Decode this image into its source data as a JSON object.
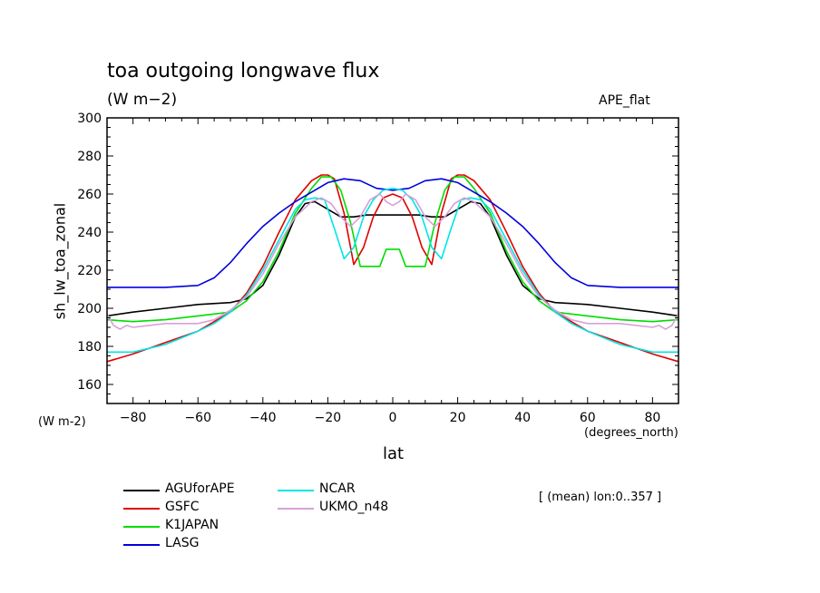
{
  "chart_data": {
    "type": "line",
    "title": "toa outgoing longwave flux",
    "units": "(W m−2)",
    "dataset_label": "APE_flat",
    "ylabel": "sh_lw_toa_zonal",
    "y_units": "(W m-2)",
    "xlabel": "lat",
    "x_units": "(degrees_north)",
    "annotation": "[ (mean) lon:0..357 ]",
    "xlim": [
      -88,
      88
    ],
    "ylim": [
      150,
      300
    ],
    "x_ticks": [
      -80,
      -60,
      -40,
      -20,
      0,
      20,
      40,
      60,
      80
    ],
    "y_ticks": [
      160,
      180,
      200,
      220,
      240,
      260,
      280,
      300
    ],
    "x_ticks_labels": [
      "−80",
      "−60",
      "−40",
      "−20",
      "0",
      "20",
      "40",
      "60",
      "80"
    ],
    "y_tick_labels": [
      "160",
      "180",
      "200",
      "220",
      "240",
      "260",
      "280",
      "300"
    ],
    "legend": "bottom-left",
    "grid": false,
    "series": [
      {
        "name": "AGUforAPE",
        "color": "#000000",
        "x": [
          -88,
          -80,
          -70,
          -60,
          -50,
          -45,
          -40,
          -35,
          -30,
          -27,
          -24,
          -20,
          -16,
          -12,
          -8,
          -4,
          0,
          4,
          8,
          12,
          16,
          20,
          24,
          27,
          30,
          35,
          40,
          45,
          50,
          60,
          70,
          80,
          88
        ],
        "y": [
          196,
          198,
          200,
          202,
          203,
          205,
          212,
          228,
          248,
          255,
          256,
          252,
          248,
          248,
          249,
          249,
          249,
          249,
          249,
          248,
          248,
          252,
          256,
          255,
          248,
          228,
          212,
          205,
          203,
          202,
          200,
          198,
          196
        ]
      },
      {
        "name": "GSFC",
        "color": "#e00000",
        "x": [
          -88,
          -80,
          -70,
          -60,
          -50,
          -45,
          -40,
          -35,
          -30,
          -25,
          -22,
          -20,
          -18,
          -15,
          -12,
          -9,
          -6,
          -3,
          0,
          3,
          6,
          9,
          12,
          15,
          18,
          20,
          22,
          25,
          30,
          35,
          40,
          45,
          50,
          60,
          70,
          80,
          88
        ],
        "y": [
          172,
          176,
          182,
          188,
          198,
          208,
          222,
          240,
          257,
          267,
          270,
          270,
          268,
          250,
          223,
          232,
          248,
          258,
          260,
          258,
          248,
          232,
          223,
          250,
          268,
          270,
          270,
          267,
          257,
          240,
          222,
          208,
          198,
          188,
          182,
          176,
          172
        ]
      },
      {
        "name": "K1JAPAN",
        "color": "#00dd00",
        "x": [
          -88,
          -80,
          -70,
          -60,
          -50,
          -45,
          -40,
          -35,
          -30,
          -25,
          -22,
          -19,
          -16,
          -13,
          -10,
          -7,
          -4,
          -2,
          0,
          2,
          4,
          7,
          10,
          13,
          16,
          19,
          22,
          25,
          30,
          35,
          40,
          45,
          50,
          60,
          70,
          80,
          88
        ],
        "y": [
          194,
          193,
          194,
          196,
          198,
          204,
          214,
          230,
          250,
          263,
          269,
          269,
          262,
          245,
          222,
          222,
          222,
          231,
          231,
          231,
          222,
          222,
          222,
          245,
          262,
          269,
          269,
          263,
          250,
          230,
          214,
          204,
          198,
          196,
          194,
          193,
          194
        ]
      },
      {
        "name": "LASG",
        "color": "#0000dd",
        "x": [
          -88,
          -80,
          -70,
          -60,
          -55,
          -50,
          -45,
          -40,
          -35,
          -30,
          -25,
          -20,
          -15,
          -10,
          -5,
          0,
          5,
          10,
          15,
          20,
          25,
          30,
          35,
          40,
          45,
          50,
          55,
          60,
          70,
          80,
          88
        ],
        "y": [
          211,
          211,
          211,
          212,
          216,
          224,
          234,
          243,
          250,
          256,
          261,
          266,
          268,
          267,
          263,
          262,
          263,
          267,
          268,
          266,
          261,
          256,
          250,
          243,
          234,
          224,
          216,
          212,
          211,
          211,
          211
        ]
      },
      {
        "name": "NCAR",
        "color": "#00e5e5",
        "x": [
          -88,
          -80,
          -70,
          -60,
          -55,
          -50,
          -45,
          -40,
          -35,
          -30,
          -27,
          -24,
          -21,
          -18,
          -15,
          -12,
          -9,
          -6,
          -3,
          0,
          3,
          6,
          9,
          12,
          15,
          18,
          21,
          24,
          27,
          30,
          35,
          40,
          45,
          50,
          55,
          60,
          70,
          80,
          88
        ],
        "y": [
          177,
          177,
          181,
          188,
          192,
          198,
          207,
          220,
          236,
          252,
          257,
          258,
          257,
          242,
          226,
          232,
          248,
          257,
          262,
          263,
          262,
          257,
          248,
          232,
          226,
          242,
          257,
          258,
          257,
          252,
          236,
          220,
          207,
          198,
          192,
          188,
          181,
          177,
          177
        ]
      },
      {
        "name": "UKMO_n48",
        "color": "#d8a0d8",
        "x": [
          -88,
          -86,
          -84,
          -82,
          -80,
          -70,
          -60,
          -55,
          -50,
          -45,
          -40,
          -35,
          -30,
          -25,
          -22,
          -19,
          -16,
          -13,
          -10,
          -7,
          -4,
          -2,
          0,
          2,
          4,
          7,
          10,
          13,
          16,
          19,
          22,
          25,
          30,
          35,
          40,
          45,
          50,
          55,
          60,
          70,
          80,
          82,
          84,
          86,
          88
        ],
        "y": [
          197,
          191,
          189,
          191,
          190,
          192,
          192,
          194,
          199,
          206,
          218,
          234,
          248,
          256,
          258,
          255,
          248,
          243,
          248,
          257,
          260,
          256,
          254,
          256,
          260,
          257,
          248,
          243,
          248,
          255,
          258,
          256,
          248,
          234,
          218,
          206,
          199,
          194,
          192,
          192,
          190,
          191,
          189,
          191,
          197
        ]
      }
    ]
  }
}
